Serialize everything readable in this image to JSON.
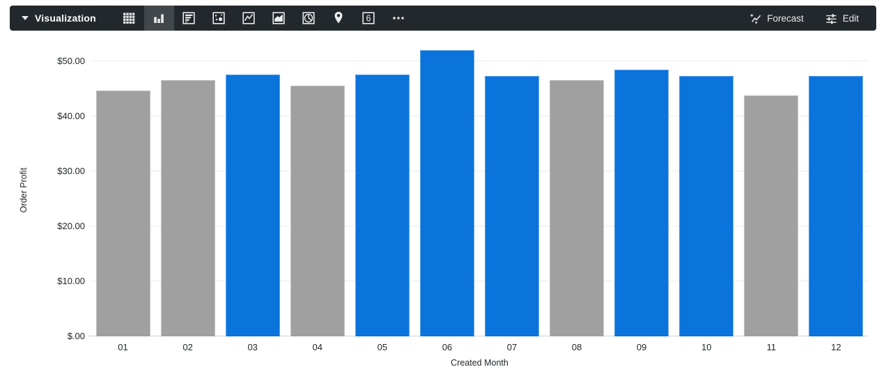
{
  "toolbar": {
    "title": "Visualization",
    "viz_types": [
      {
        "name": "table",
        "selected": false
      },
      {
        "name": "column",
        "selected": true
      },
      {
        "name": "bar",
        "selected": false
      },
      {
        "name": "scatter",
        "selected": false
      },
      {
        "name": "line",
        "selected": false
      },
      {
        "name": "area",
        "selected": false
      },
      {
        "name": "pie",
        "selected": false
      },
      {
        "name": "map",
        "selected": false
      },
      {
        "name": "single-value",
        "selected": false
      },
      {
        "name": "more",
        "selected": false
      }
    ],
    "forecast_label": "Forecast",
    "edit_label": "Edit"
  },
  "chart_data": {
    "type": "bar",
    "title": "",
    "xlabel": "Created Month",
    "ylabel": "Order Profit",
    "categories": [
      "01",
      "02",
      "03",
      "04",
      "05",
      "06",
      "07",
      "08",
      "09",
      "10",
      "11",
      "12"
    ],
    "values": [
      44.6,
      46.5,
      47.6,
      45.5,
      47.5,
      52.0,
      47.3,
      46.6,
      48.5,
      47.3,
      43.7,
      47.3
    ],
    "bar_colors": [
      "gray",
      "gray",
      "blue",
      "gray",
      "blue",
      "blue",
      "blue",
      "gray",
      "blue",
      "blue",
      "gray",
      "blue"
    ],
    "palette": {
      "blue": "#0b73dc",
      "gray": "#a0a0a0"
    },
    "y_ticks": [
      {
        "label": "$50.00",
        "value": 50
      },
      {
        "label": "$40.00",
        "value": 40
      },
      {
        "label": "$30.00",
        "value": 30
      },
      {
        "label": "$20.00",
        "value": 20
      },
      {
        "label": "$10.00",
        "value": 10
      },
      {
        "label": "$.00",
        "value": 0
      }
    ],
    "ylim": [
      0,
      53.5
    ],
    "grid": true,
    "legend": false
  }
}
